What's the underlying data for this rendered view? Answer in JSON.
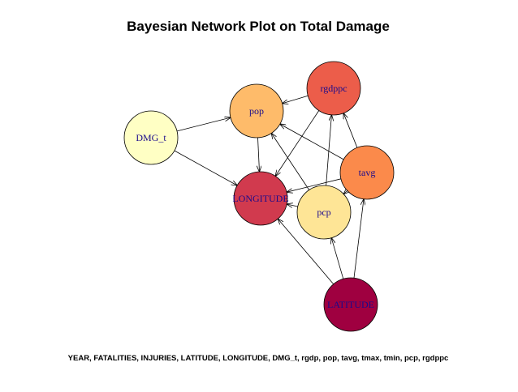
{
  "title": "Bayesian Network Plot on Total Damage",
  "footer": "YEAR, FATALITIES, INJURIES, LATITUDE, LONGITUDE, DMG_t, rgdp, pop, tavg, tmax, tmin, pcp, rgdppc",
  "nodes": [
    {
      "id": "rgdppc",
      "label": "rgdppc",
      "color": "#EC5D4A"
    },
    {
      "id": "pop",
      "label": "pop",
      "color": "#FEBB6A"
    },
    {
      "id": "DMG_t",
      "label": "DMG_t",
      "color": "#FFFFC4"
    },
    {
      "id": "tavg",
      "label": "tavg",
      "color": "#FB8A4B"
    },
    {
      "id": "LONGITUDE",
      "label": "LONGITUDE",
      "color": "#D13A4E"
    },
    {
      "id": "pcp",
      "label": "pcp",
      "color": "#FEE596"
    },
    {
      "id": "LATITUDE",
      "label": "LATITUDE",
      "color": "#9F0040"
    }
  ],
  "edges": [
    {
      "from": "DMG_t",
      "to": "pop"
    },
    {
      "from": "DMG_t",
      "to": "LONGITUDE"
    },
    {
      "from": "rgdppc",
      "to": "pop"
    },
    {
      "from": "rgdppc",
      "to": "LONGITUDE"
    },
    {
      "from": "pop",
      "to": "LONGITUDE"
    },
    {
      "from": "tavg",
      "to": "rgdppc"
    },
    {
      "from": "tavg",
      "to": "pop"
    },
    {
      "from": "tavg",
      "to": "LONGITUDE"
    },
    {
      "from": "tavg",
      "to": "pcp"
    },
    {
      "from": "pcp",
      "to": "rgdppc"
    },
    {
      "from": "pcp",
      "to": "pop"
    },
    {
      "from": "pcp",
      "to": "LONGITUDE"
    },
    {
      "from": "LATITUDE",
      "to": "LONGITUDE"
    },
    {
      "from": "LATITUDE",
      "to": "pcp"
    },
    {
      "from": "LATITUDE",
      "to": "tavg"
    }
  ]
}
